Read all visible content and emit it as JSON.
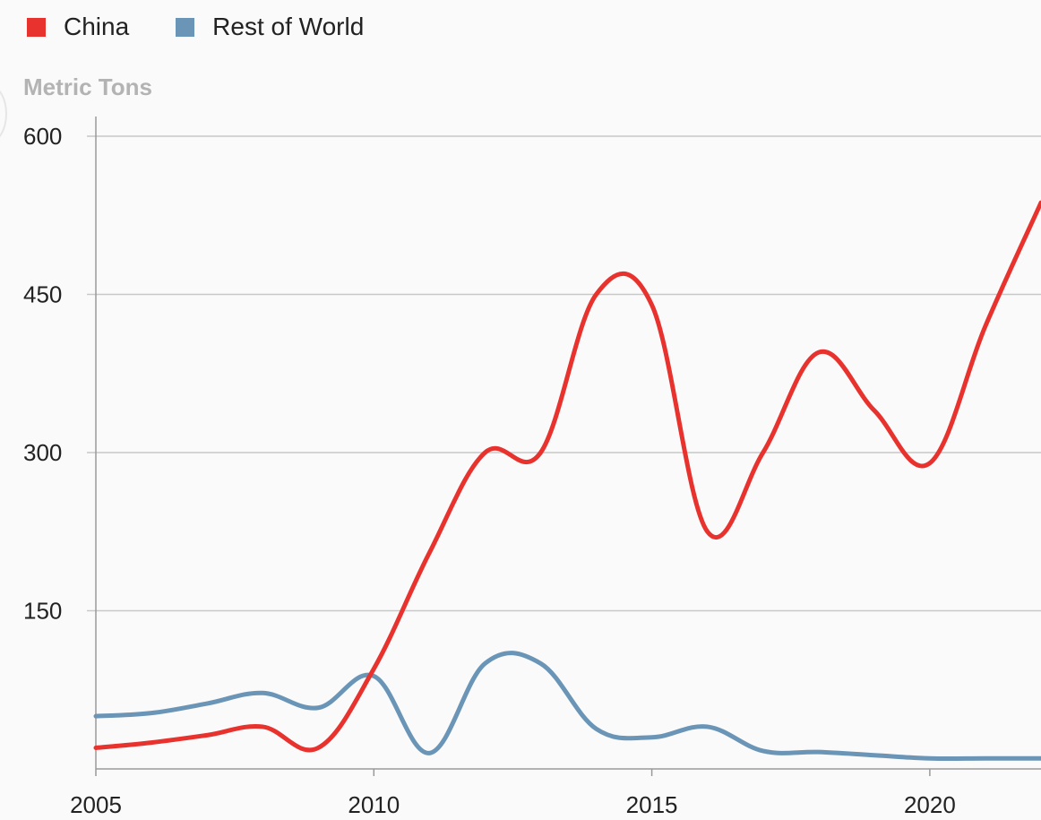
{
  "legend": {
    "china_label": "China",
    "row_label": "Rest of World"
  },
  "colors": {
    "china": "#e8322e",
    "rest_of_world": "#6b95b6",
    "grid": "#c8c8c8",
    "axis": "#999999",
    "unit_label": "#b3b3b3"
  },
  "chart_data": {
    "type": "line",
    "ylabel": "Metric Tons",
    "xlabel": "",
    "title": "",
    "x": [
      2005,
      2006,
      2007,
      2008,
      2009,
      2010,
      2011,
      2012,
      2013,
      2014,
      2015,
      2016,
      2017,
      2018,
      2019,
      2020,
      2021,
      2022
    ],
    "xlim": [
      2005,
      2022
    ],
    "ylim": [
      0,
      600
    ],
    "yticks": [
      150,
      300,
      450,
      600
    ],
    "xticks": [
      2005,
      2010,
      2015,
      2020
    ],
    "grid": true,
    "legend_position": "top-left",
    "series": [
      {
        "name": "China",
        "color": "#e8322e",
        "values": [
          20,
          25,
          32,
          40,
          20,
          95,
          205,
          300,
          300,
          450,
          440,
          225,
          300,
          395,
          340,
          290,
          420,
          537
        ]
      },
      {
        "name": "Rest of World",
        "color": "#6b95b6",
        "values": [
          50,
          53,
          62,
          72,
          58,
          88,
          15,
          100,
          100,
          38,
          30,
          40,
          17,
          16,
          13,
          10,
          10,
          10
        ]
      }
    ]
  }
}
